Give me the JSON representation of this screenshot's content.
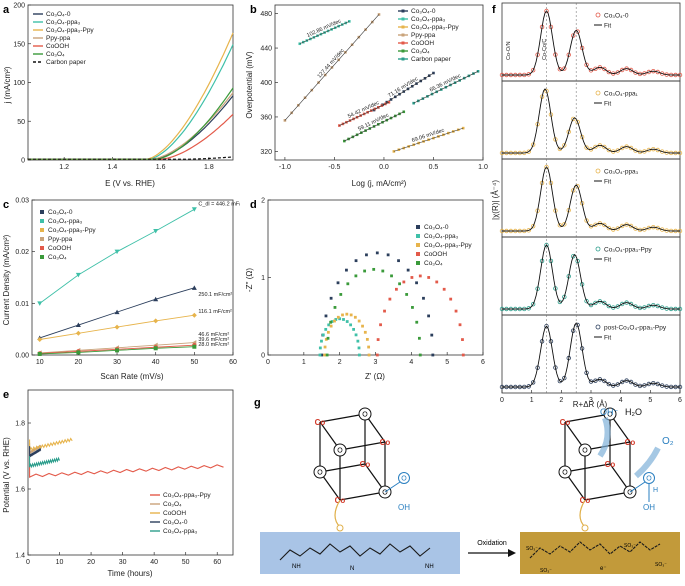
{
  "figure": {
    "panel_letters": [
      "a",
      "b",
      "c",
      "d",
      "e",
      "f",
      "g"
    ]
  },
  "colors": {
    "co3o4_0": "#2b3e5c",
    "ppa1": "#3fc0a8",
    "ppa3_ppy": "#e7b44c",
    "ppy_ppa": "#c9a37a",
    "cooh": "#e35a4a",
    "co3o4": "#3a9a3a",
    "carbon": "#111111",
    "ppa3": "#2c9e8c",
    "blue_box": "#a9c4e6",
    "gold_box": "#c29a3a",
    "co_red": "#d23a2a",
    "oh_blue": "#2a7fc0"
  },
  "legend_a": [
    "Co₃O₄-0",
    "Co₃O₄-ppa₃",
    "Co₃O₄-ppa₃-Ppy",
    "Ppy-ppa",
    "CoOOH",
    "Co₃O₄",
    "Carbon paper"
  ],
  "legend_b": [
    "Co₃O₄-0",
    "Co₃O₄-ppa₃",
    "Co₃O₄-ppa₃-Ppy",
    "Ppy-ppa",
    "CoOOH",
    "Co₃O₄",
    "Carbon paper"
  ],
  "legend_c": [
    "Co₃O₄-0",
    "Co₃O₄-ppa₃",
    "Co₃O₄-ppa₃-Ppy",
    "Ppy-ppa",
    "CoOOH",
    "Co₃O₄"
  ],
  "legend_d": [
    "Co₃O₄-0",
    "Co₃O₄-ppa₃",
    "Co₃O₄-ppa₃-Ppy",
    "CoOOH",
    "Co₃O₄"
  ],
  "legend_e": [
    "Co₃O₄-ppa₃-Ppy",
    "Co₃O₄",
    "CoOOH",
    "Co₃O₄-0",
    "Co₃O₄-ppa₃"
  ],
  "legend_f": [
    "Co₃O₄-0",
    "Co₃O₄-ppa₁",
    "Co₃O₄-ppa₃",
    "Co₃O₄-ppa₃-Ppy",
    "post-Co₃O₄-ppa₃-Ppy"
  ],
  "fit_label": "Fit",
  "panel_f_annotations": [
    "Co-O/N",
    "Co-Co/C"
  ],
  "panel_g": {
    "oxidation": "Oxidation",
    "species": [
      "OH⁻",
      "H₂O",
      "O₂"
    ],
    "co_label": "Co",
    "o_label": "O",
    "oh_label": "OH",
    "nh_label": "NH",
    "n_label": "N",
    "h_label": "H",
    "so3_label": "SO₃⁻",
    "electron": "e⁻"
  },
  "chart_data": [
    {
      "panel": "a",
      "type": "line",
      "xlabel": "E (V vs. RHE)",
      "ylabel": "j (mA/cm²)",
      "xlim": [
        1.05,
        1.9
      ],
      "ylim": [
        0,
        200
      ],
      "xticks": [
        "1.2",
        "1.4",
        "1.6",
        "1.8"
      ],
      "yticks": [
        "0",
        "50",
        "100",
        "150",
        "200"
      ],
      "series": [
        {
          "name": "Co₃O₄-0",
          "onset": 1.57,
          "end": 82
        },
        {
          "name": "Co₃O₄-ppa₃",
          "onset": 1.55,
          "end": 148
        },
        {
          "name": "Co₃O₄-ppa₃-Ppy",
          "onset": 1.54,
          "end": 163
        },
        {
          "name": "Ppy-ppa",
          "onset": 1.56,
          "end": 86
        },
        {
          "name": "CoOOH",
          "onset": 1.6,
          "end": 58
        },
        {
          "name": "Co₃O₄",
          "onset": 1.58,
          "end": 92
        },
        {
          "name": "Carbon paper",
          "onset": 1.7,
          "end": 3
        }
      ]
    },
    {
      "panel": "b",
      "type": "line",
      "xlabel": "Log (j, mA/cm²)",
      "ylabel": "Overpotential (mV)",
      "xlim": [
        -1.1,
        1.0
      ],
      "ylim": [
        310,
        490
      ],
      "xticks": [
        "-1.0",
        "-0.5",
        "0.0",
        "0.5",
        "1.0"
      ],
      "yticks": [
        "320",
        "360",
        "400",
        "440",
        "480"
      ],
      "series": [
        {
          "name": "Carbon paper",
          "x": [
            -0.85,
            -0.35
          ],
          "y": [
            445,
            471
          ],
          "slope_label": "102.86 mV/dec"
        },
        {
          "name": "Ppy-ppa",
          "x": [
            -1.0,
            -0.05
          ],
          "y": [
            356,
            479
          ],
          "slope_label": "127.44 mV/dec"
        },
        {
          "name": "Co₃O₄-0",
          "x": [
            -0.1,
            0.5
          ],
          "y": [
            368,
            411
          ],
          "slope_label": "71.16 mV/dec"
        },
        {
          "name": "Co₃O₄",
          "x": [
            0.3,
            0.95
          ],
          "y": [
            376,
            413
          ],
          "slope_label": "66.36 mV/dec"
        },
        {
          "name": "CoOOH",
          "x": [
            -0.45,
            0.05
          ],
          "y": [
            350,
            377
          ],
          "slope_label": "54.42 mV/dec"
        },
        {
          "name": "Co₃O₄-ppa₃",
          "x": [
            -0.4,
            0.2
          ],
          "y": [
            332,
            366
          ],
          "slope_label": "59.11 mV/dec"
        },
        {
          "name": "Co₃O₄-ppa₃-Ppy",
          "x": [
            0.1,
            0.8
          ],
          "y": [
            320,
            347
          ],
          "slope_label": "69.06 mV/dec"
        }
      ]
    },
    {
      "panel": "c",
      "type": "scatter",
      "xlabel": "Scan Rate (mV/s)",
      "ylabel": "Current Density (mA/cm²)",
      "xlim": [
        8,
        60
      ],
      "ylim": [
        0,
        0.03
      ],
      "xticks": [
        "10",
        "20",
        "30",
        "40",
        "50",
        "60"
      ],
      "yticks": [
        "0.00",
        "0.01",
        "0.02",
        "0.03"
      ],
      "x": [
        10,
        20,
        30,
        40,
        50
      ],
      "series": [
        {
          "name": "Co₃O₄-0",
          "values": [
            0.0033,
            0.0058,
            0.0083,
            0.0108,
            0.013
          ],
          "label": "250.1 mF/cm²"
        },
        {
          "name": "Co₃O₄-ppa₃",
          "values": [
            0.01,
            0.0155,
            0.02,
            0.024,
            0.0282
          ],
          "label": "C_dl = 446.2 mF/cm²"
        },
        {
          "name": "Co₃O₄-ppa₃-Ppy",
          "values": [
            0.003,
            0.0042,
            0.0054,
            0.0066,
            0.0077
          ],
          "label": "116.1 mF/cm²"
        },
        {
          "name": "Ppy-ppa",
          "values": [
            0.0004,
            0.0009,
            0.0014,
            0.0019,
            0.0024
          ],
          "label": "46.6 mF/cm²"
        },
        {
          "name": "CoOOH",
          "values": [
            0.0003,
            0.0007,
            0.0011,
            0.0015,
            0.0019
          ],
          "label": "39.6 mF/cm²"
        },
        {
          "name": "Co₃O₄",
          "values": [
            0.0002,
            0.0005,
            0.0009,
            0.0013,
            0.0016
          ],
          "label": "28.0 mF/cm²"
        }
      ]
    },
    {
      "panel": "d",
      "type": "scatter",
      "xlabel": "Z' (Ω)",
      "ylabel": "-Z'' (Ω)",
      "xlim": [
        0,
        6
      ],
      "ylim": [
        0,
        2
      ],
      "xticks": [
        "0",
        "1",
        "2",
        "3",
        "4",
        "5",
        "6"
      ],
      "yticks": [
        "0",
        "1",
        "2"
      ],
      "series": [
        {
          "name": "Co₃O₄-0",
          "center": 3.05,
          "radius": 1.55
        },
        {
          "name": "Co₃O₄-ppa₃",
          "center": 2.0,
          "radius": 0.55
        },
        {
          "name": "Co₃O₄-ppa₃-Ppy",
          "center": 2.2,
          "radius": 0.62
        },
        {
          "name": "CoOOH",
          "center": 4.25,
          "radius": 1.2
        },
        {
          "name": "Co₃O₄",
          "center": 2.95,
          "radius": 1.3
        }
      ]
    },
    {
      "panel": "e",
      "type": "line",
      "xlabel": "Time (hours)",
      "ylabel": "Potential (V vs. RHE)",
      "xlim": [
        0,
        65
      ],
      "ylim": [
        1.4,
        1.9
      ],
      "xticks": [
        "0",
        "10",
        "20",
        "30",
        "40",
        "50",
        "60"
      ],
      "yticks": [
        "1.4",
        "1.6",
        "1.8"
      ],
      "series": [
        {
          "name": "Co₃O₄-ppa₃-Ppy",
          "t_end": 62,
          "v_start": 1.64,
          "v_end": 1.67
        },
        {
          "name": "Co₃O₄",
          "t_end": 4,
          "v_start": 1.71,
          "v_end": 1.73
        },
        {
          "name": "CoOOH",
          "t_end": 14,
          "v_start": 1.72,
          "v_end": 1.75
        },
        {
          "name": "Co₃O₄-0",
          "t_end": 4,
          "v_start": 1.7,
          "v_end": 1.72
        },
        {
          "name": "Co₃O₄-ppa₃",
          "t_end": 10,
          "v_start": 1.67,
          "v_end": 1.69
        }
      ]
    },
    {
      "panel": "f",
      "type": "line",
      "xlabel": "R+ΔR (Å)",
      "ylabel": "|χ(R)| (Å⁻⁴)",
      "xlim": [
        0,
        6
      ],
      "xticks": [
        "0",
        "1",
        "2",
        "3",
        "4",
        "5",
        "6"
      ],
      "series": [
        {
          "name": "Co₃O₄-0",
          "peaks": [
            [
              1.5,
              1.0
            ],
            [
              2.5,
              0.7
            ]
          ]
        },
        {
          "name": "Co₃O₄-ppa₁",
          "peaks": [
            [
              1.45,
              1.0
            ],
            [
              2.45,
              0.55
            ]
          ]
        },
        {
          "name": "Co₃O₄-ppa₃",
          "peaks": [
            [
              1.5,
              1.0
            ],
            [
              2.5,
              0.72
            ]
          ]
        },
        {
          "name": "Co₃O₄-ppa₃-Ppy",
          "peaks": [
            [
              1.5,
              1.0
            ],
            [
              2.45,
              0.85
            ]
          ]
        },
        {
          "name": "post-Co₃O₄-ppa₃-Ppy",
          "peaks": [
            [
              1.5,
              0.95
            ],
            [
              2.5,
              1.0
            ]
          ]
        }
      ]
    }
  ]
}
